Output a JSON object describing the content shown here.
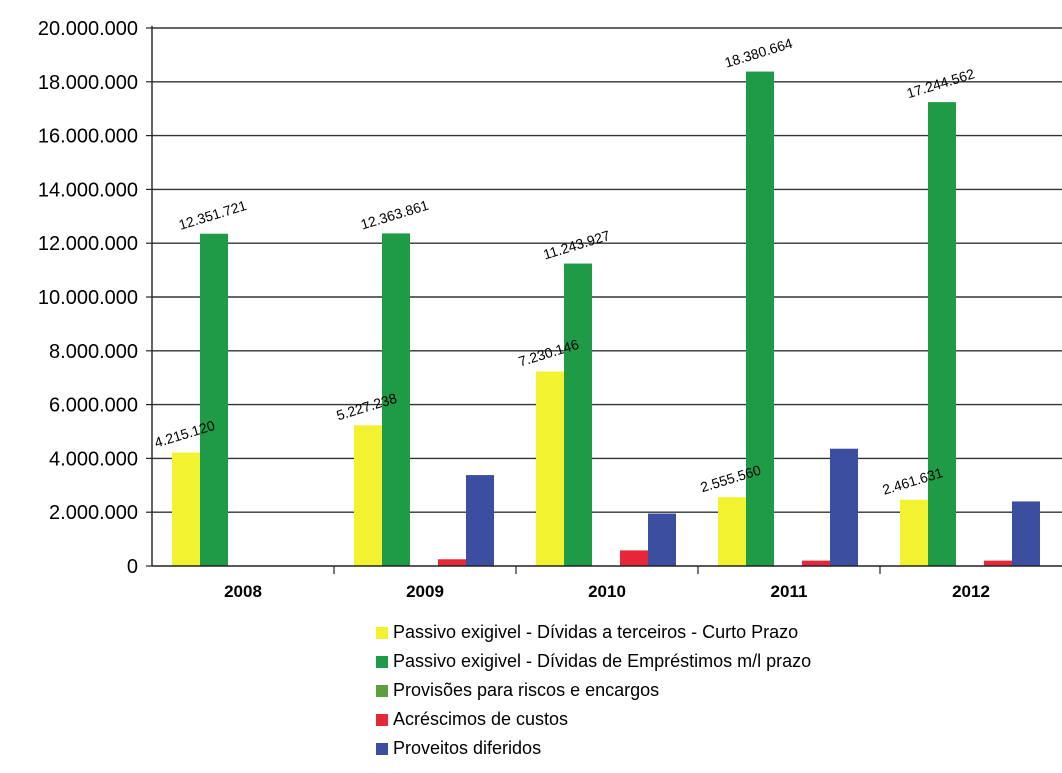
{
  "chart_data": {
    "type": "bar",
    "categories": [
      "2008",
      "2009",
      "2010",
      "2011",
      "2012"
    ],
    "series": [
      {
        "name": "Passivo exigivel - Dívidas a terceiros - Curto Prazo",
        "color": "#f2f230",
        "values": [
          4215120,
          5227238,
          7230146,
          2555560,
          2461631
        ],
        "labels": [
          "4.215.120",
          "5.227.238",
          "7.230.146",
          "2.555.560",
          "2.461.631"
        ]
      },
      {
        "name": "Passivo exigivel - Dívidas de Empréstimos m/l prazo",
        "color": "#1f9a47",
        "values": [
          12351721,
          12363861,
          11243927,
          18380664,
          17244562
        ],
        "labels": [
          "12.351.721",
          "12.363.861",
          "11.243.927",
          "18.380.664",
          "17.244.562"
        ]
      },
      {
        "name": "Provisões para riscos e encargos",
        "color": "#5e9e3e",
        "values": [
          0,
          0,
          0,
          0,
          0
        ]
      },
      {
        "name": "Acréscimos de custos",
        "color": "#e8263a",
        "values": [
          0,
          250000,
          580000,
          200000,
          200000
        ]
      },
      {
        "name": "Proveitos diferidos",
        "color": "#3b4ea0",
        "values": [
          0,
          3380000,
          1950000,
          4360000,
          2400000
        ]
      }
    ],
    "yticks": [
      "0",
      "2.000.000",
      "4.000.000",
      "6.000.000",
      "8.000.000",
      "10.000.000",
      "12.000.000",
      "14.000.000",
      "16.000.000",
      "18.000.000",
      "20.000.000"
    ],
    "ylim": [
      0,
      20000000
    ],
    "grid": true,
    "legend_position": "bottom",
    "title": "",
    "xlabel": "",
    "ylabel": ""
  }
}
